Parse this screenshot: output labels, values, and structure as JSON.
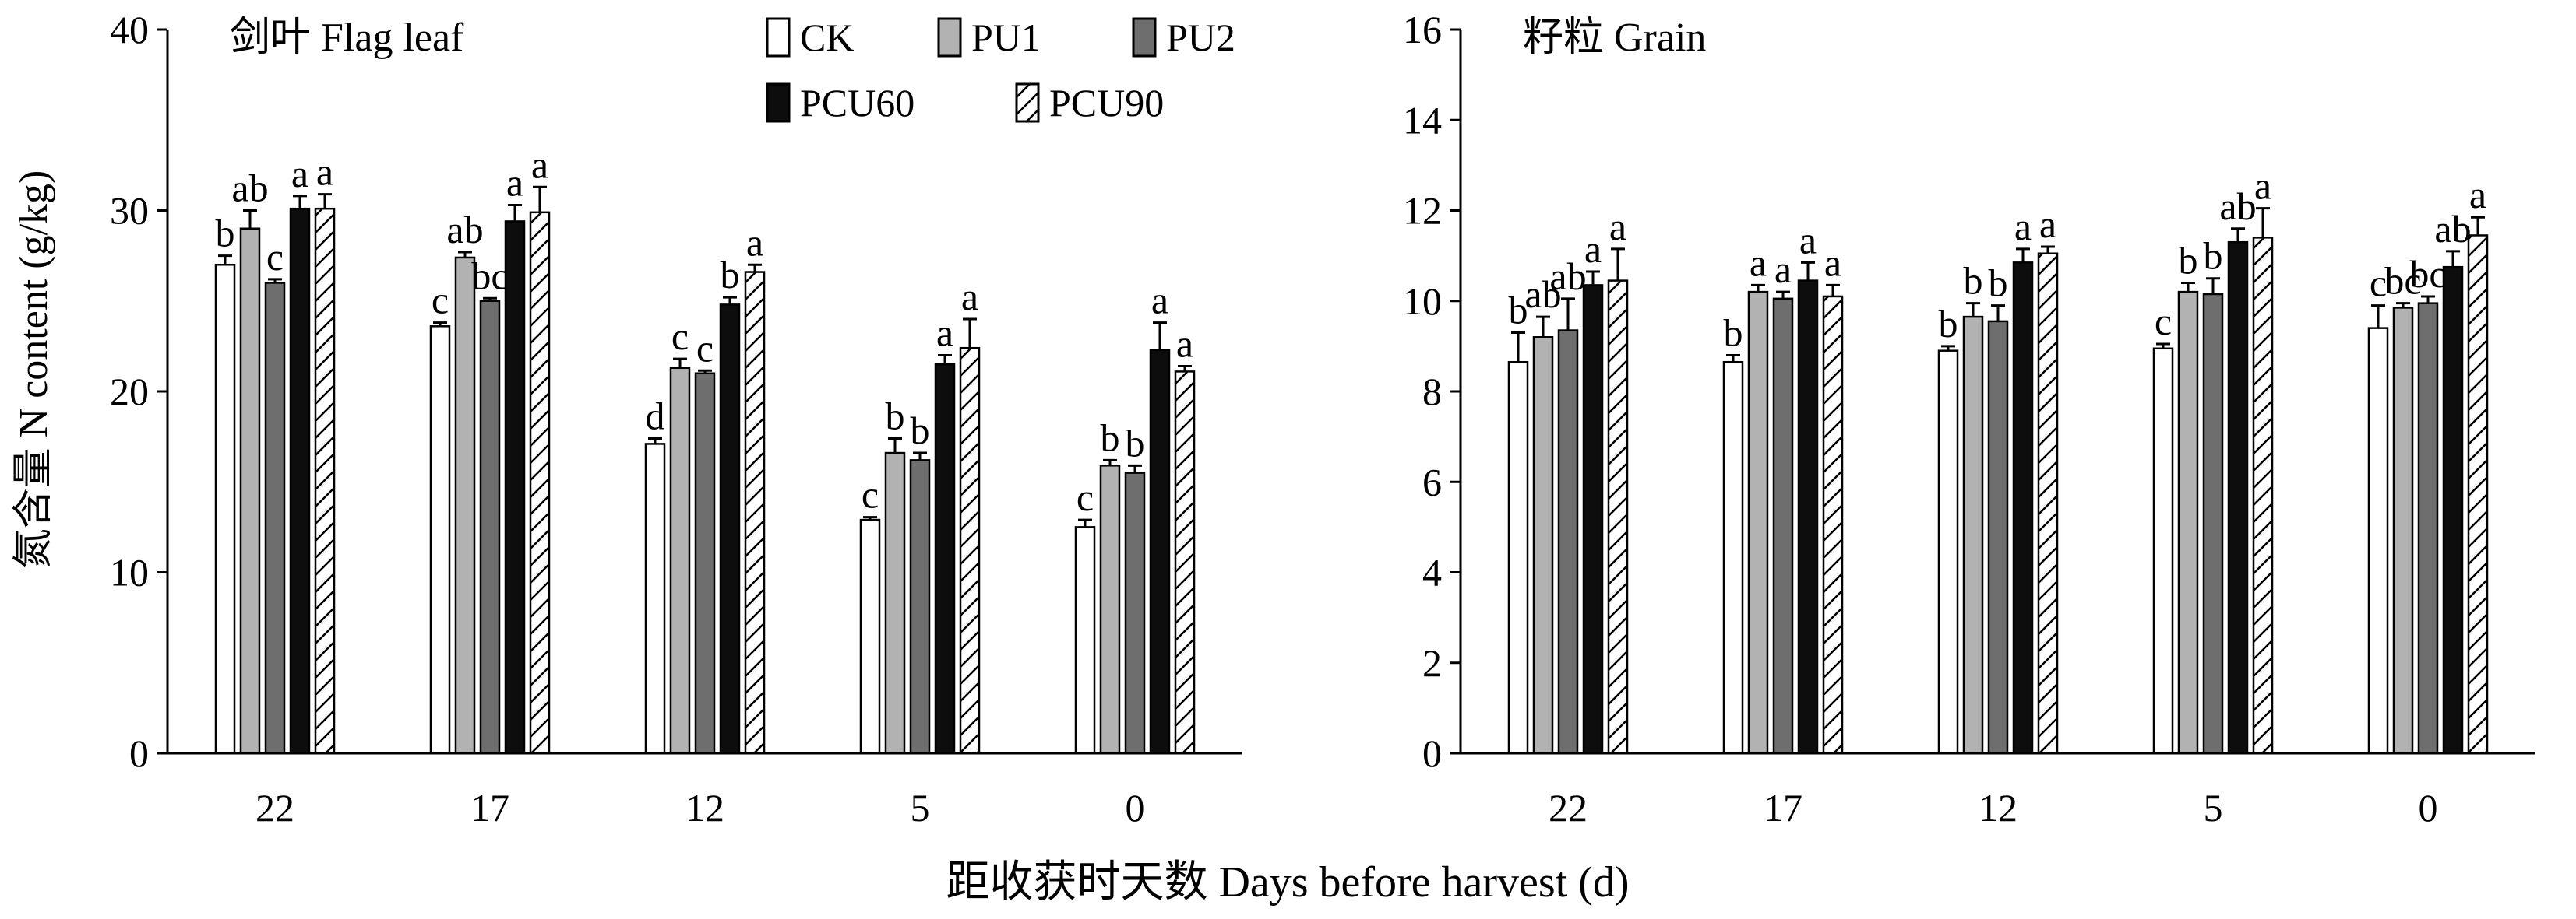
{
  "chart_data": [
    {
      "type": "bar",
      "title": "剑叶 Flag leaf",
      "ylabel": "氮含量 N content (g/kg)",
      "xlabel": "距收获时天数 Days before harvest (d)",
      "ylim": [
        0,
        40
      ],
      "yticks": [
        "0",
        "10",
        "20",
        "30",
        "40"
      ],
      "categories": [
        "22",
        "17",
        "12",
        "5",
        "0"
      ],
      "series": [
        {
          "name": "CK",
          "values": [
            27.0,
            23.6,
            17.1,
            12.9,
            12.5
          ],
          "errors": [
            0.5,
            0.2,
            0.3,
            0.15,
            0.4
          ],
          "labels": [
            "b",
            "c",
            "d",
            "c",
            "c"
          ]
        },
        {
          "name": "PU1",
          "values": [
            29.0,
            27.4,
            21.3,
            16.6,
            15.9
          ],
          "errors": [
            1.0,
            0.3,
            0.5,
            0.8,
            0.3
          ],
          "labels": [
            "ab",
            "ab",
            "c",
            "b",
            "b"
          ]
        },
        {
          "name": "PU2",
          "values": [
            26.0,
            25.0,
            21.0,
            16.2,
            15.5
          ],
          "errors": [
            0.2,
            0.15,
            0.15,
            0.4,
            0.4
          ],
          "labels": [
            "c",
            "bc",
            "c",
            "b",
            "b"
          ]
        },
        {
          "name": "PCU60",
          "values": [
            30.1,
            29.4,
            24.8,
            21.5,
            22.3
          ],
          "errors": [
            0.7,
            0.9,
            0.4,
            0.5,
            1.5
          ],
          "labels": [
            "a",
            "a",
            "b",
            "a",
            "a"
          ]
        },
        {
          "name": "PCU90",
          "values": [
            30.1,
            29.9,
            26.6,
            22.4,
            21.1
          ],
          "errors": [
            0.8,
            1.4,
            0.4,
            1.6,
            0.3
          ],
          "labels": [
            "a",
            "a",
            "a",
            "a",
            "a"
          ]
        }
      ],
      "legend": {
        "entries": [
          "CK",
          "PU1",
          "PU2",
          "PCU60",
          "PCU90"
        ],
        "position": "top-right"
      }
    },
    {
      "type": "bar",
      "title": "籽粒 Grain",
      "ylabel": "",
      "xlabel": "距收获时天数 Days before harvest (d)",
      "ylim": [
        0,
        16
      ],
      "yticks": [
        "0",
        "2",
        "4",
        "6",
        "8",
        "10",
        "12",
        "14",
        "16"
      ],
      "categories": [
        "22",
        "17",
        "12",
        "5",
        "0"
      ],
      "series": [
        {
          "name": "CK",
          "values": [
            8.65,
            8.65,
            8.9,
            8.95,
            9.4
          ],
          "errors": [
            0.65,
            0.15,
            0.1,
            0.1,
            0.5
          ],
          "labels": [
            "b",
            "b",
            "b",
            "c",
            "c"
          ]
        },
        {
          "name": "PU1",
          "values": [
            9.2,
            10.2,
            9.65,
            10.2,
            9.85
          ],
          "errors": [
            0.45,
            0.15,
            0.3,
            0.2,
            0.1
          ],
          "labels": [
            "ab",
            "a",
            "b",
            "b",
            "bc"
          ]
        },
        {
          "name": "PU2",
          "values": [
            9.35,
            10.05,
            9.55,
            10.15,
            9.95
          ],
          "errors": [
            0.7,
            0.15,
            0.35,
            0.35,
            0.15
          ],
          "labels": [
            "ab",
            "a",
            "b",
            "b",
            "bc"
          ]
        },
        {
          "name": "PCU60",
          "values": [
            10.35,
            10.45,
            10.85,
            11.3,
            10.75
          ],
          "errors": [
            0.3,
            0.4,
            0.3,
            0.3,
            0.35
          ],
          "labels": [
            "a",
            "a",
            "a",
            "ab",
            "ab"
          ]
        },
        {
          "name": "PCU90",
          "values": [
            10.45,
            10.1,
            11.05,
            11.4,
            11.45
          ],
          "errors": [
            0.7,
            0.25,
            0.15,
            0.65,
            0.4
          ],
          "labels": [
            "a",
            "a",
            "a",
            "a",
            "a"
          ]
        }
      ]
    }
  ],
  "colors": {
    "CK": "#ffffff",
    "PU1": "#b2b2b2",
    "PU2": "#6e6e6e",
    "PCU60": "#0d0d0d",
    "PCU90": "#ffffff",
    "axis": "#000000"
  }
}
